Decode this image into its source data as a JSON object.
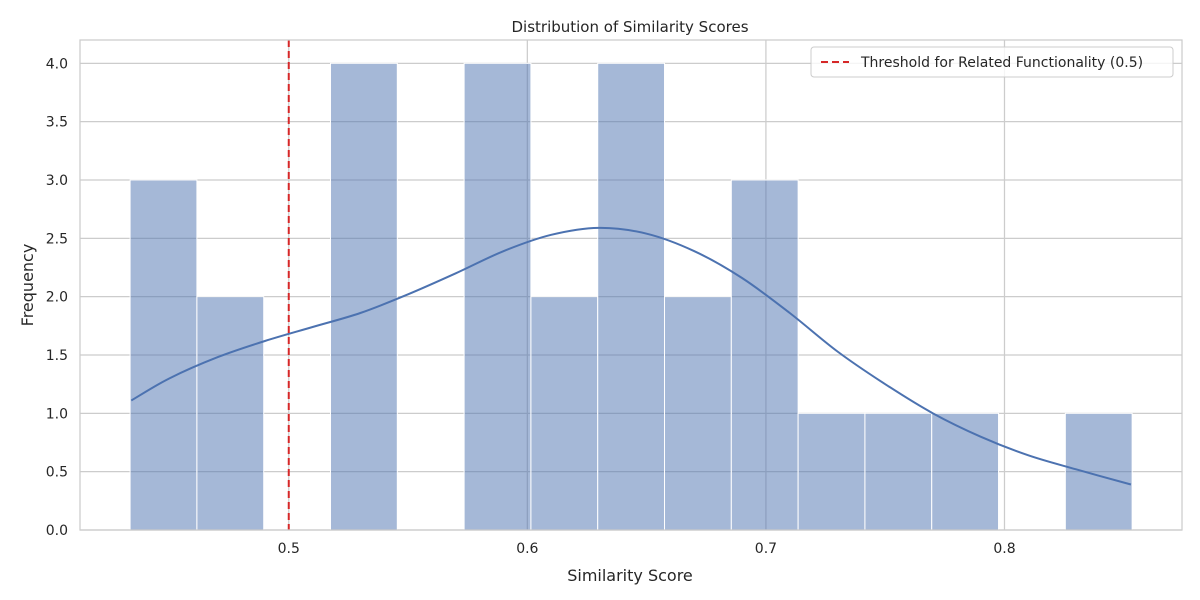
{
  "chart_data": {
    "type": "histogram",
    "title": "Distribution of Similarity Scores",
    "xlabel": "Similarity Score",
    "ylabel": "Frequency",
    "xlim": [
      0.4125,
      0.8744
    ],
    "ylim": [
      0,
      4.2
    ],
    "xticks": [
      0.5,
      0.6,
      0.7,
      0.8
    ],
    "xtick_labels": [
      "0.5",
      "0.6",
      "0.7",
      "0.8"
    ],
    "yticks": [
      0.0,
      0.5,
      1.0,
      1.5,
      2.0,
      2.5,
      3.0,
      3.5,
      4.0
    ],
    "ytick_labels": [
      "0.0",
      "0.5",
      "1.0",
      "1.5",
      "2.0",
      "2.5",
      "3.0",
      "3.5",
      "4.0"
    ],
    "bins": [
      {
        "start": 0.4335,
        "end": 0.4615,
        "count": 3
      },
      {
        "start": 0.4615,
        "end": 0.4895,
        "count": 2
      },
      {
        "start": 0.4895,
        "end": 0.5175,
        "count": 0
      },
      {
        "start": 0.5175,
        "end": 0.5455,
        "count": 4
      },
      {
        "start": 0.5455,
        "end": 0.5735,
        "count": 0
      },
      {
        "start": 0.5735,
        "end": 0.6015,
        "count": 4
      },
      {
        "start": 0.6015,
        "end": 0.6295,
        "count": 2
      },
      {
        "start": 0.6295,
        "end": 0.6575,
        "count": 4
      },
      {
        "start": 0.6575,
        "end": 0.6855,
        "count": 2
      },
      {
        "start": 0.6855,
        "end": 0.7135,
        "count": 3
      },
      {
        "start": 0.7135,
        "end": 0.7415,
        "count": 1
      },
      {
        "start": 0.7415,
        "end": 0.7695,
        "count": 1
      },
      {
        "start": 0.7695,
        "end": 0.7975,
        "count": 1
      },
      {
        "start": 0.7975,
        "end": 0.8255,
        "count": 0
      },
      {
        "start": 0.8255,
        "end": 0.8535,
        "count": 1
      }
    ],
    "kde": {
      "x": [
        0.434,
        0.45,
        0.47,
        0.49,
        0.51,
        0.53,
        0.55,
        0.57,
        0.59,
        0.61,
        0.63,
        0.65,
        0.67,
        0.69,
        0.71,
        0.73,
        0.75,
        0.77,
        0.79,
        0.81,
        0.83,
        0.853
      ],
      "y": [
        1.11,
        1.3,
        1.48,
        1.62,
        1.74,
        1.86,
        2.02,
        2.2,
        2.39,
        2.53,
        2.59,
        2.54,
        2.39,
        2.16,
        1.86,
        1.53,
        1.25,
        1.0,
        0.8,
        0.64,
        0.52,
        0.39
      ]
    },
    "threshold": {
      "value": 0.5,
      "label": "Threshold for Related Functionality (0.5)"
    },
    "legend_position": "top-right",
    "grid": true,
    "colors": {
      "bar_fill": "#4c72b0",
      "bar_opacity": 0.5,
      "kde_line": "#4c72b0",
      "threshold_line": "#d62728",
      "grid": "#cccccc",
      "spine": "#cccccc"
    }
  }
}
